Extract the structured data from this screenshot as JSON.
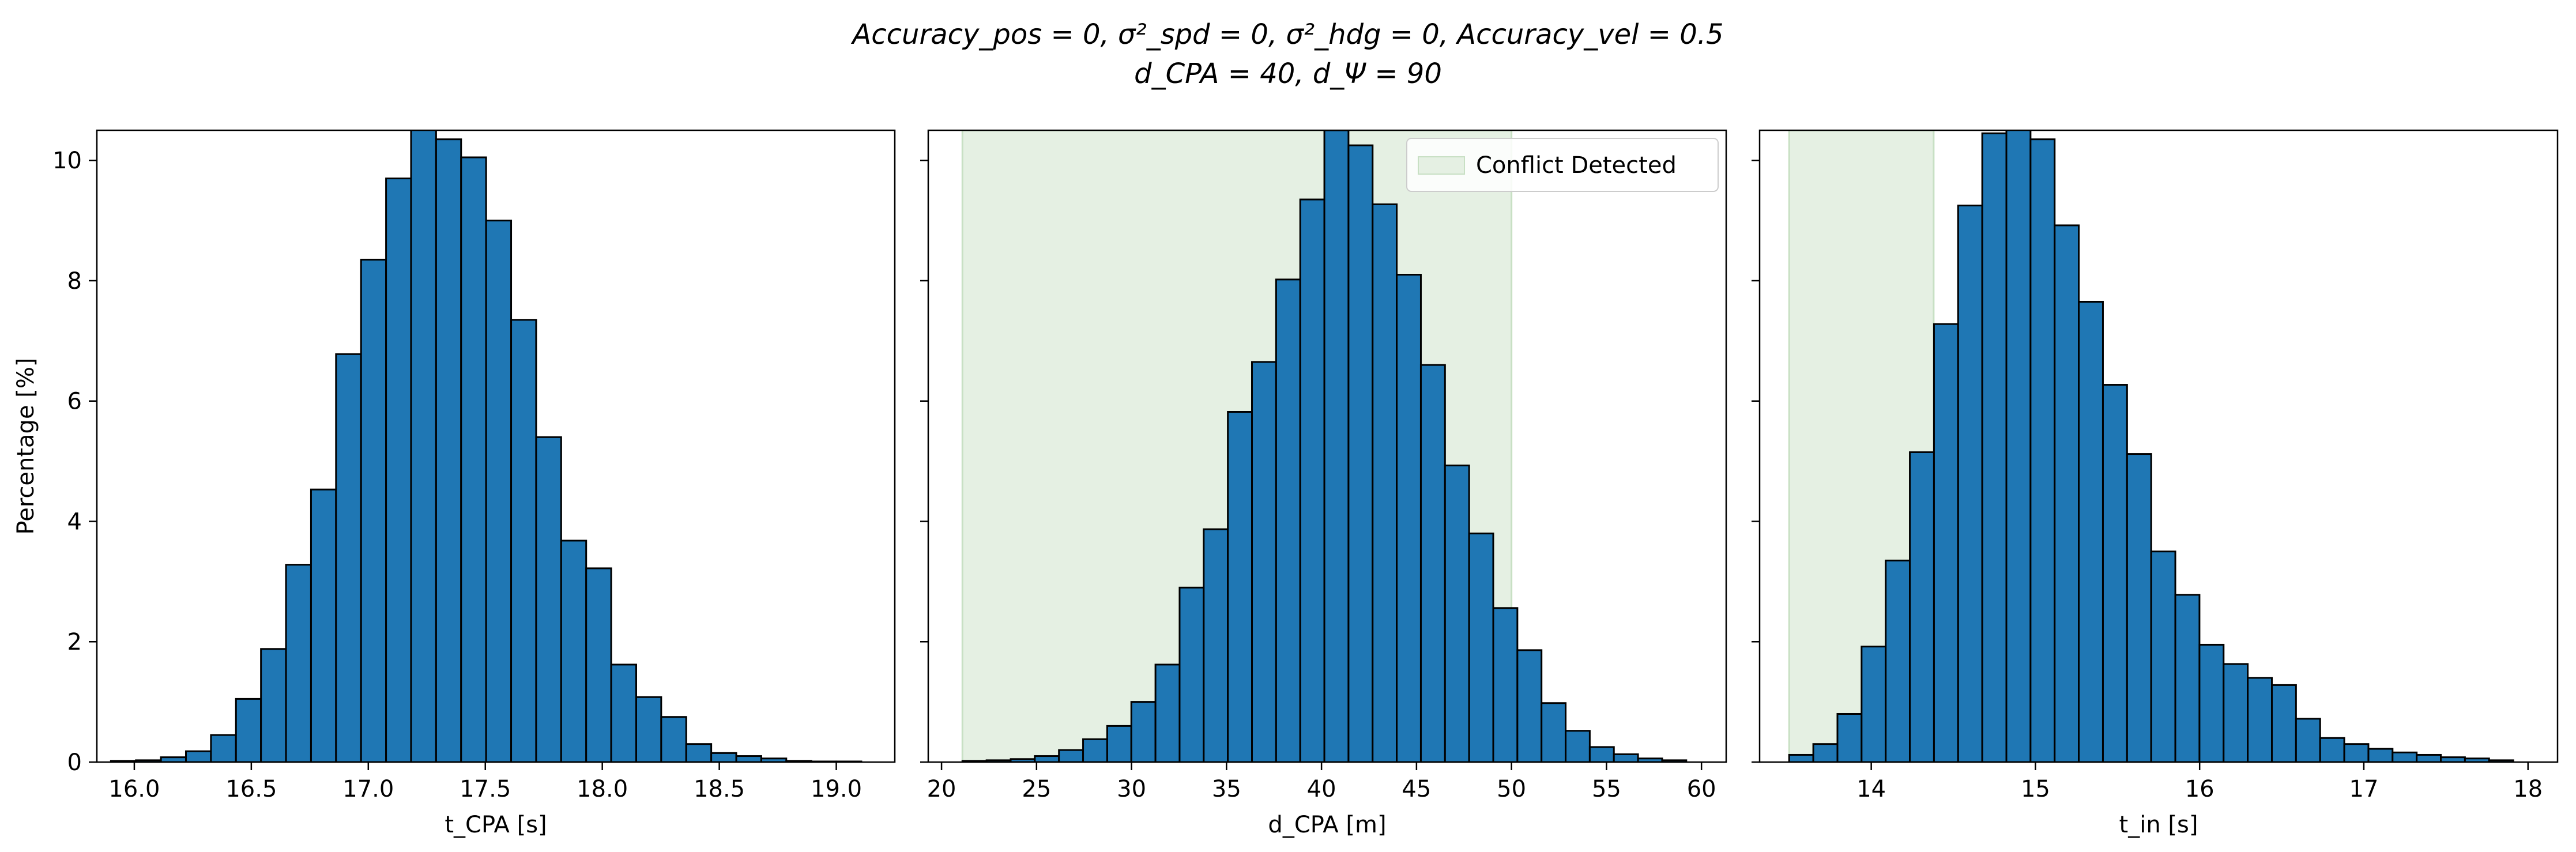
{
  "figure": {
    "title_line1": "Accuracy_pos = 0, σ²_spd = 0, σ²_hdg = 0, Accuracy_vel = 0.5",
    "title_line2": "d_CPA = 40, d_Ψ = 90"
  },
  "colors": {
    "bar_fill": "#1f77b4",
    "bar_edge": "#000000",
    "conflict_span": "#e5f0e3",
    "conflict_span_edge": "#c8e0c4"
  },
  "chart_data": [
    {
      "type": "bar",
      "subtype": "histogram",
      "xlabel": "t_CPA [s]",
      "ylabel": "Percentage [%]",
      "xlim": [
        15.84,
        19.25
      ],
      "ylim": [
        0,
        10.5
      ],
      "xticks": [
        16.0,
        16.5,
        17.0,
        17.5,
        18.0,
        18.5,
        19.0
      ],
      "xtick_labels": [
        "16.0",
        "16.5",
        "17.0",
        "17.5",
        "18.0",
        "18.5",
        "19.0"
      ],
      "yticks": [
        0,
        2,
        4,
        6,
        8,
        10
      ],
      "ytick_labels": [
        "0",
        "2",
        "4",
        "6",
        "8",
        "10"
      ],
      "bin_start": 15.9,
      "bin_width": 0.1069,
      "values": [
        0.02,
        0.03,
        0.08,
        0.18,
        0.45,
        1.05,
        1.88,
        3.28,
        4.53,
        6.78,
        8.35,
        9.7,
        10.6,
        10.35,
        10.05,
        9.0,
        7.35,
        5.4,
        3.68,
        3.22,
        1.62,
        1.08,
        0.75,
        0.3,
        0.15,
        0.1,
        0.06,
        0.02,
        0.01,
        0.01
      ],
      "conflict_span": null,
      "legend": null
    },
    {
      "type": "bar",
      "subtype": "histogram",
      "xlabel": "d_CPA [m]",
      "ylabel": "",
      "xlim": [
        19.3,
        61.3
      ],
      "ylim": [
        0,
        10.5
      ],
      "xticks": [
        20,
        25,
        30,
        35,
        40,
        45,
        50,
        55,
        60
      ],
      "xtick_labels": [
        "20",
        "25",
        "30",
        "35",
        "40",
        "45",
        "50",
        "55",
        "60"
      ],
      "yticks": [
        0,
        2,
        4,
        6,
        8,
        10
      ],
      "ytick_labels": [
        "",
        "",
        "",
        "",
        "",
        ""
      ],
      "bin_start": 21.1,
      "bin_width": 1.27,
      "values": [
        0.02,
        0.03,
        0.05,
        0.1,
        0.2,
        0.38,
        0.6,
        1.0,
        1.62,
        2.9,
        3.87,
        5.82,
        6.65,
        8.02,
        9.35,
        10.5,
        10.25,
        9.27,
        8.1,
        6.6,
        4.93,
        3.8,
        2.56,
        1.86,
        0.98,
        0.52,
        0.25,
        0.13,
        0.06,
        0.03
      ],
      "conflict_span": [
        21.1,
        50.0
      ],
      "legend": {
        "label": "Conflict Detected",
        "position": "upper right"
      }
    },
    {
      "type": "bar",
      "subtype": "histogram",
      "xlabel": "t_in [s]",
      "ylabel": "",
      "xlim": [
        13.32,
        18.18
      ],
      "ylim": [
        0,
        10.5
      ],
      "xticks": [
        14,
        15,
        16,
        17,
        18
      ],
      "xtick_labels": [
        "14",
        "15",
        "16",
        "17",
        "18"
      ],
      "yticks": [
        0,
        2,
        4,
        6,
        8,
        10
      ],
      "ytick_labels": [
        "",
        "",
        "",
        "",
        "",
        ""
      ],
      "bin_start": 13.5,
      "bin_width": 0.147,
      "values": [
        0.12,
        0.3,
        0.8,
        1.92,
        3.35,
        5.15,
        7.28,
        9.25,
        10.45,
        10.6,
        10.35,
        8.92,
        7.65,
        6.27,
        5.12,
        3.5,
        2.78,
        1.95,
        1.63,
        1.4,
        1.28,
        0.72,
        0.4,
        0.3,
        0.22,
        0.16,
        0.12,
        0.08,
        0.06,
        0.03
      ],
      "conflict_span": [
        13.5,
        14.38
      ],
      "legend": null
    }
  ]
}
